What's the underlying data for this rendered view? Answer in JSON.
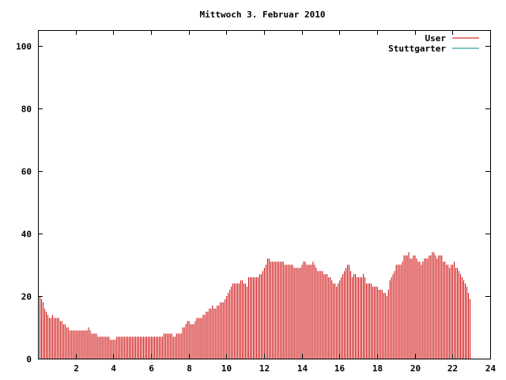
{
  "chart_data": {
    "type": "bar",
    "title": "Mittwoch 3. Februar 2010",
    "xlabel": "",
    "ylabel": "",
    "xlim": [
      0,
      24
    ],
    "ylim": [
      0,
      105
    ],
    "x_ticks": [
      2,
      4,
      6,
      8,
      10,
      12,
      14,
      16,
      18,
      20,
      22,
      24
    ],
    "x_tick_labels": [
      "2",
      "4",
      "6",
      "8",
      "10",
      "12",
      "14",
      "16",
      "18",
      "20",
      "22",
      "24"
    ],
    "y_ticks": [
      0,
      20,
      40,
      60,
      80,
      100
    ],
    "y_tick_labels": [
      "0",
      "20",
      "40",
      "60",
      "80",
      "100"
    ],
    "x_step_hours": 0.0833,
    "legend_position": "top-right",
    "series": [
      {
        "name": "User",
        "color": "#cc0000",
        "values": [
          21,
          20,
          19,
          18,
          16,
          15,
          14,
          13,
          13,
          14,
          13,
          13,
          13,
          13,
          12,
          12,
          11,
          11,
          10,
          10,
          9,
          9,
          9,
          9,
          9,
          9,
          9,
          9,
          9,
          9,
          9,
          9,
          10,
          9,
          8,
          8,
          8,
          8,
          7,
          7,
          7,
          7,
          7,
          7,
          7,
          7,
          6,
          6,
          6,
          6,
          7,
          7,
          7,
          7,
          7,
          7,
          7,
          7,
          7,
          7,
          7,
          7,
          7,
          7,
          7,
          7,
          7,
          7,
          7,
          7,
          7,
          7,
          7,
          7,
          7,
          7,
          7,
          7,
          7,
          7,
          8,
          8,
          8,
          8,
          8,
          8,
          7,
          7,
          8,
          8,
          8,
          8,
          10,
          10,
          11,
          12,
          12,
          11,
          11,
          11,
          12,
          13,
          13,
          13,
          13,
          14,
          14,
          15,
          15,
          16,
          16,
          17,
          16,
          16,
          17,
          17,
          18,
          18,
          18,
          19,
          20,
          21,
          22,
          23,
          24,
          24,
          24,
          24,
          24,
          25,
          25,
          24,
          24,
          23,
          26,
          26,
          26,
          26,
          26,
          26,
          26,
          27,
          27,
          28,
          29,
          30,
          32,
          32,
          31,
          31,
          31,
          31,
          31,
          31,
          31,
          31,
          31,
          30,
          30,
          30,
          30,
          30,
          30,
          29,
          29,
          29,
          29,
          29,
          30,
          31,
          31,
          30,
          30,
          30,
          30,
          31,
          30,
          29,
          28,
          28,
          28,
          28,
          27,
          27,
          27,
          26,
          26,
          25,
          24,
          24,
          23,
          24,
          25,
          26,
          27,
          28,
          29,
          30,
          30,
          28,
          26,
          27,
          27,
          26,
          26,
          26,
          26,
          27,
          26,
          24,
          24,
          24,
          24,
          23,
          23,
          23,
          23,
          22,
          22,
          22,
          21,
          21,
          20,
          22,
          25,
          26,
          27,
          28,
          30,
          30,
          30,
          30,
          31,
          33,
          33,
          33,
          34,
          32,
          32,
          33,
          33,
          32,
          31,
          31,
          30,
          31,
          32,
          32,
          32,
          33,
          33,
          34,
          34,
          33,
          32,
          33,
          33,
          33,
          31,
          31,
          30,
          30,
          29,
          30,
          30,
          31,
          29,
          29,
          28,
          27,
          26,
          25,
          24,
          23,
          21,
          19
        ]
      },
      {
        "name": "Stuttgarter",
        "color": "#008b8b",
        "values": []
      }
    ]
  }
}
